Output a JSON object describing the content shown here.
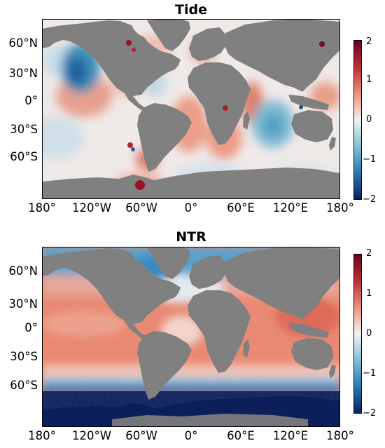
{
  "panels": [
    {
      "id": "tide",
      "title": "Tide",
      "lat_ticks": [
        "60°N",
        "30°N",
        "0°",
        "30°S",
        "60°S"
      ],
      "lon_ticks": [
        "180°",
        "120°W",
        "60°W",
        "0°",
        "60°E",
        "120°E",
        "180°"
      ],
      "colorbar": {
        "ticks": [
          "2",
          "1",
          "0",
          "−1",
          "−2"
        ],
        "range": [
          -2,
          2
        ]
      },
      "colormap": {
        "high": "#67001f",
        "mid": "#f2f2f2",
        "low": "#0a1f5c"
      }
    },
    {
      "id": "ntr",
      "title": "NTR",
      "lat_ticks": [
        "60°N",
        "30°N",
        "0°",
        "30°S",
        "60°S"
      ],
      "lon_ticks": [
        "180°",
        "120°W",
        "60°W",
        "0°",
        "60°E",
        "120°E",
        "180°"
      ],
      "colorbar": {
        "ticks": [
          "2",
          "1",
          "0",
          "−1",
          "−2"
        ],
        "range": [
          -2,
          2
        ]
      },
      "colormap": {
        "high": "#67001f",
        "mid": "#f2f2f2",
        "low": "#0a1f5c"
      }
    }
  ],
  "land_color": "#808080"
}
